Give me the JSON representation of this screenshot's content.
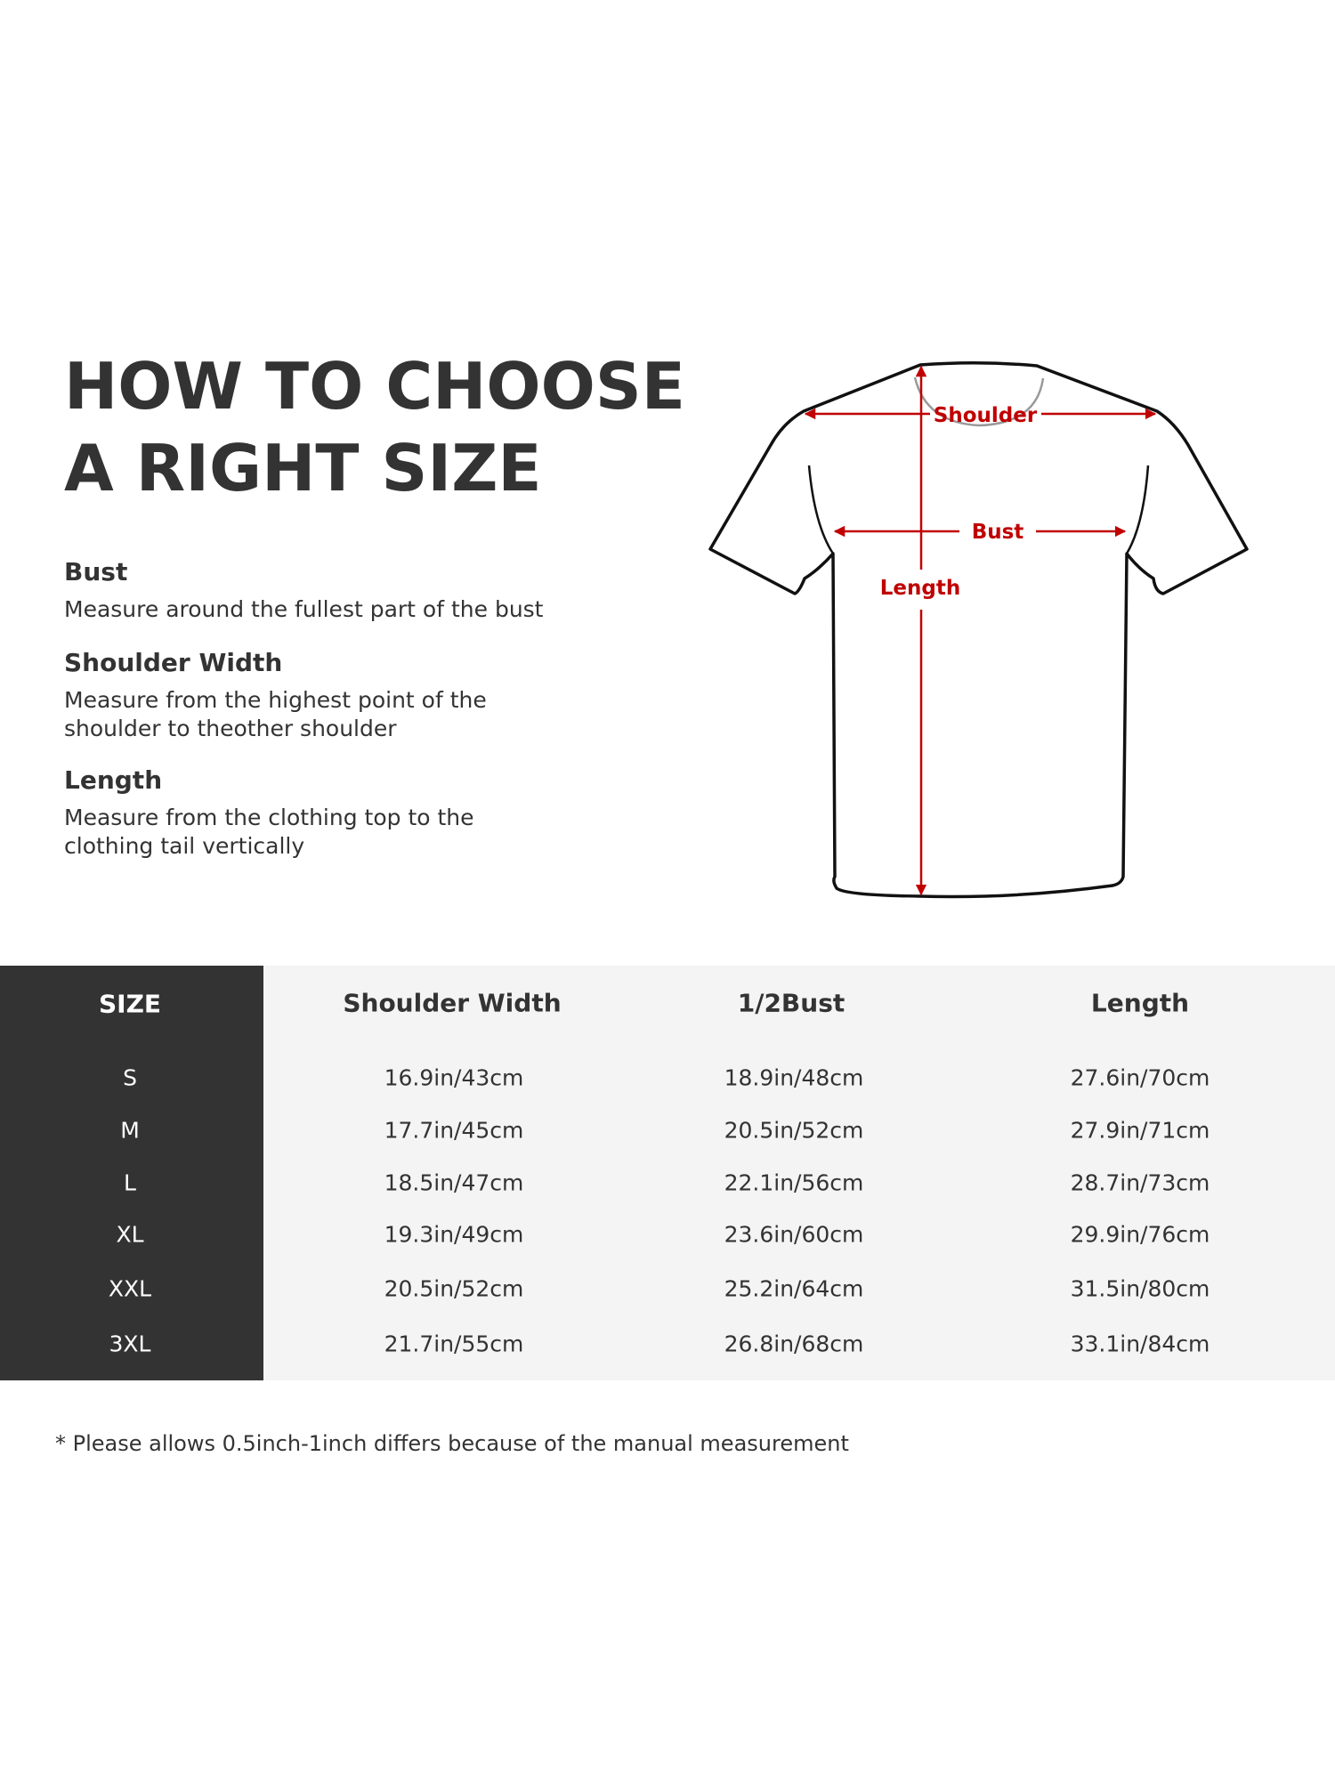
{
  "title": {
    "line1": "HOW TO CHOOSE",
    "line2": "A RIGHT SIZE"
  },
  "guide": [
    {
      "heading": "Bust",
      "lines": [
        "Measure around the fullest part of the bust"
      ]
    },
    {
      "heading": "Shoulder Width",
      "lines": [
        "Measure from the highest point of the",
        "shoulder to theother shoulder"
      ]
    },
    {
      "heading": "Length",
      "lines": [
        "Measure from the clothing top to the",
        "clothing tail vertically"
      ]
    }
  ],
  "diagram": {
    "labels": {
      "shoulder": "Shoulder",
      "bust": "Bust",
      "length": "Length"
    },
    "colors": {
      "arrow": "#c00000",
      "outline": "#111111"
    }
  },
  "table": {
    "headers": [
      "SIZE",
      "Shoulder Width",
      "1/2Bust",
      "Length"
    ],
    "rows": [
      [
        "S",
        "16.9in/43cm",
        "18.9in/48cm",
        "27.6in/70cm"
      ],
      [
        "M",
        "17.7in/45cm",
        "20.5in/52cm",
        "27.9in/71cm"
      ],
      [
        "L",
        "18.5in/47cm",
        "22.1in/56cm",
        "28.7in/73cm"
      ],
      [
        "XL",
        "19.3in/49cm",
        "23.6in/60cm",
        "29.9in/76cm"
      ],
      [
        "XXL",
        "20.5in/52cm",
        "25.2in/64cm",
        "31.5in/80cm"
      ],
      [
        "3XL",
        "21.7in/55cm",
        "26.8in/68cm",
        "33.1in/84cm"
      ]
    ],
    "colors": {
      "size_column": "#333333",
      "body": "#f4f4f4"
    }
  },
  "footnote": "* Please allows 0.5inch-1inch differs because of the  manual measurement"
}
